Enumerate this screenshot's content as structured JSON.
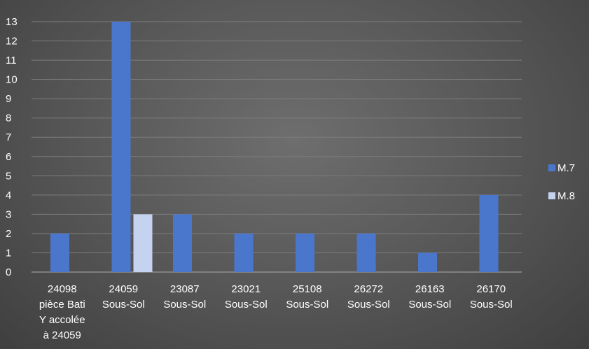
{
  "chart_data": {
    "type": "bar",
    "categories": [
      [
        "24098",
        "pièce Bati",
        "Y accolée",
        "à 24059"
      ],
      [
        "24059",
        "Sous-Sol"
      ],
      [
        "23087",
        "Sous-Sol"
      ],
      [
        "23021",
        "Sous-Sol"
      ],
      [
        "25108",
        "Sous-Sol"
      ],
      [
        "26272",
        "Sous-Sol"
      ],
      [
        "26163",
        "Sous-Sol"
      ],
      [
        "26170",
        "Sous-Sol"
      ]
    ],
    "series": [
      {
        "name": "M.7",
        "values": [
          2,
          13,
          3,
          2,
          2,
          2,
          1,
          4
        ],
        "color": "#4a77cc"
      },
      {
        "name": "M.8",
        "values": [
          0,
          3,
          0,
          0,
          0,
          0,
          0,
          0
        ],
        "color": "#c5d3f0"
      }
    ],
    "ylim": [
      0,
      13
    ],
    "yticks": [
      0,
      1,
      2,
      3,
      4,
      5,
      6,
      7,
      8,
      9,
      10,
      11,
      12,
      13
    ],
    "grid": true,
    "legend": "right",
    "colors": {
      "gridline": "#7c7c7c",
      "text": "#ffffff"
    }
  }
}
